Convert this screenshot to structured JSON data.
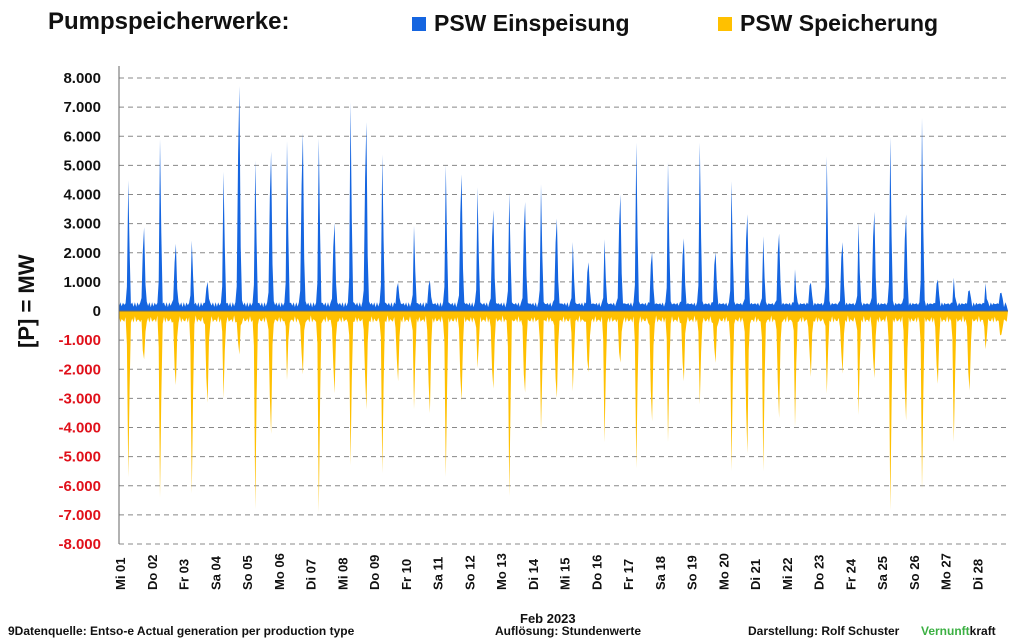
{
  "header": {
    "title": "Pumpspeicherwerke:",
    "legend": [
      {
        "label": "PSW Einspeisung",
        "color": "#1565E0"
      },
      {
        "label": "PSW Speicherung",
        "color": "#FFC000"
      }
    ]
  },
  "footer": {
    "source": "9Datenquelle: Entso-e  Actual generation per production type",
    "resolution": "Auflösung: Stundenwerte",
    "author": "Darstellung:  Rolf Schuster",
    "brand_part1": "Vernunft",
    "brand_part2": "kraft"
  },
  "chart_data": {
    "type": "area",
    "title": "Pumpspeicherwerke:",
    "ylabel": "[P]  = MW",
    "xlabel": "Feb 2023",
    "ylim": [
      -8000,
      8000
    ],
    "ytick_labels": [
      "8.000",
      "7.000",
      "6.000",
      "5.000",
      "4.000",
      "3.000",
      "2.000",
      "1.000",
      "0",
      "-1.000",
      "-2.000",
      "-3.000",
      "-4.000",
      "-5.000",
      "-6.000",
      "-7.000",
      "-8.000"
    ],
    "ytick_values": [
      8000,
      7000,
      6000,
      5000,
      4000,
      3000,
      2000,
      1000,
      0,
      -1000,
      -2000,
      -3000,
      -4000,
      -5000,
      -6000,
      -7000,
      -8000
    ],
    "grid": true,
    "legend_position": "top",
    "x_tick_labels": [
      "Mi 01",
      "Do 02",
      "Fr 03",
      "Sa 04",
      "So 05",
      "Mo 06",
      "Di 07",
      "Mi 08",
      "Do 09",
      "Fr 10",
      "Sa 11",
      "So 12",
      "Mo 13",
      "Di 14",
      "Mi 15",
      "Do 16",
      "Fr 17",
      "Sa 18",
      "So 19",
      "Mo 20",
      "Di 21",
      "Mi 22",
      "Do 23",
      "Fr 24",
      "Sa 25",
      "So 26",
      "Mo 27",
      "Di 28"
    ],
    "series": [
      {
        "name": "PSW Einspeisung",
        "color": "#1565E0",
        "note_values": "approximate daily peak feed-in in MW, two peaks per day (morning, evening)",
        "peaks": [
          [
            4500,
            2800
          ],
          [
            6000,
            2200
          ],
          [
            2300,
            800
          ],
          [
            4800,
            8000
          ],
          [
            5200,
            5600
          ],
          [
            5900,
            6300
          ],
          [
            6000,
            3000
          ],
          [
            7300,
            6700
          ],
          [
            5400,
            800
          ],
          [
            2800,
            900
          ],
          [
            5000,
            4800
          ],
          [
            4200,
            3500
          ],
          [
            4000,
            3800
          ],
          [
            4300,
            3200
          ],
          [
            2200,
            1600
          ],
          [
            2300,
            4100
          ],
          [
            5800,
            2000
          ],
          [
            5100,
            2500
          ],
          [
            5800,
            2000
          ],
          [
            4400,
            3400
          ],
          [
            2400,
            2700
          ],
          [
            1200,
            900
          ],
          [
            5300,
            2400
          ],
          [
            2900,
            3500
          ],
          [
            6000,
            3400
          ],
          [
            6700,
            1000
          ],
          [
            900,
            600
          ],
          [
            700,
            500
          ]
        ]
      },
      {
        "name": "PSW Speicherung",
        "color": "#FFC000",
        "note_values": "approximate daily max storage (negative) in MW",
        "troughs": [
          [
            -5800,
            -1500
          ],
          [
            -6500,
            -2400
          ],
          [
            -6300,
            -3000
          ],
          [
            -2800,
            -1200
          ],
          [
            -6800,
            -4100
          ],
          [
            -2100,
            -1900
          ],
          [
            -6900,
            -2600
          ],
          [
            -5200,
            -3200
          ],
          [
            -5500,
            -2200
          ],
          [
            -3200,
            -3400
          ],
          [
            -5700,
            -3000
          ],
          [
            -1800,
            -2600
          ],
          [
            -6500,
            -2800
          ],
          [
            -4200,
            -3000
          ],
          [
            -2700,
            -2000
          ],
          [
            -4500,
            -1600
          ],
          [
            -5400,
            -3700
          ],
          [
            -4400,
            -2200
          ],
          [
            -3000,
            -1500
          ],
          [
            -5400,
            -4800
          ],
          [
            -5400,
            -3500
          ],
          [
            -3800,
            -2000
          ],
          [
            -2600,
            -1900
          ],
          [
            -3400,
            -2100
          ],
          [
            -6900,
            -3700
          ],
          [
            -6200,
            -2400
          ],
          [
            -4500,
            -2700
          ],
          [
            -1200,
            -700
          ]
        ]
      }
    ]
  }
}
